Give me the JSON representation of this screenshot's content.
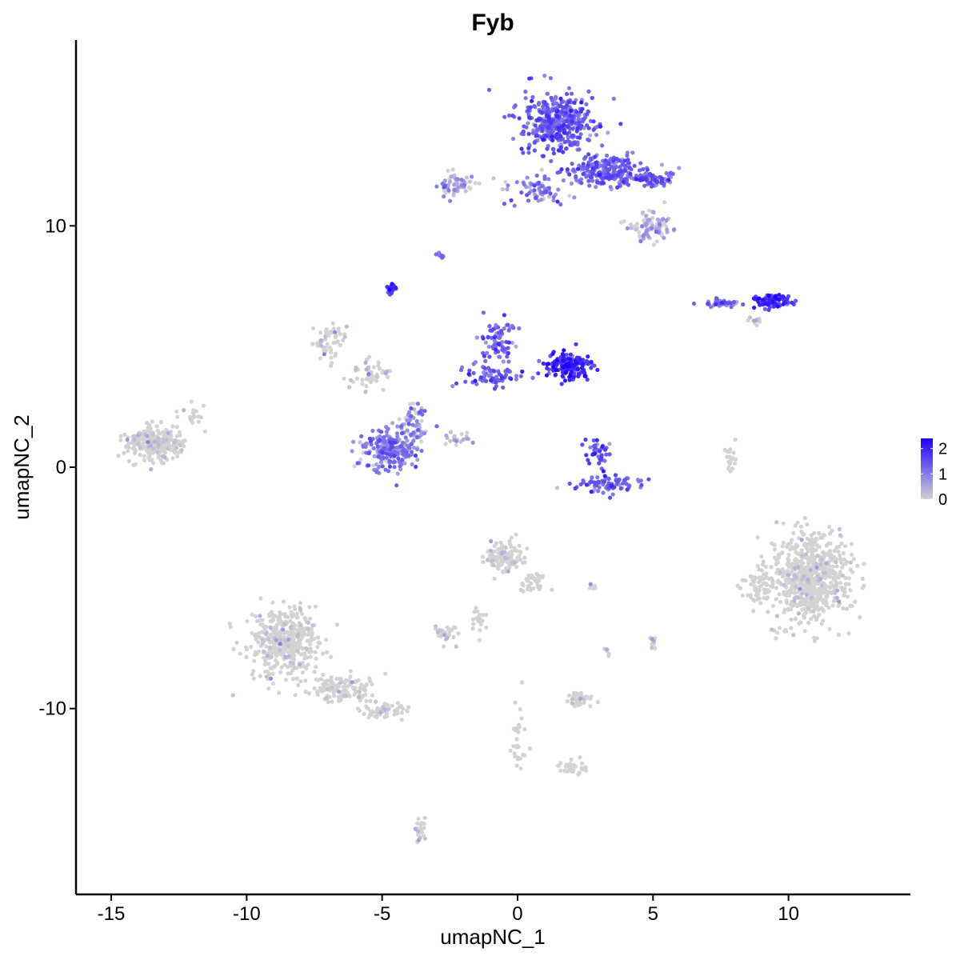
{
  "chart_data": {
    "type": "scatter",
    "title": "Fyb",
    "xlabel": "umapNC_1",
    "ylabel": "umapNC_2",
    "xlim": [
      -16.3,
      14.5
    ],
    "ylim": [
      -17.7,
      17.7
    ],
    "xticks": [
      -15,
      -10,
      -5,
      0,
      5,
      10
    ],
    "yticks": [
      -10,
      0,
      10
    ],
    "xtick_labels": [
      "-15",
      "-10",
      "-5",
      "0",
      "5",
      "10"
    ],
    "ytick_labels": [
      "-10",
      "0",
      "10"
    ],
    "grid": false,
    "legend": {
      "position": "right",
      "type": "colorbar",
      "ticks": [
        0,
        1,
        2
      ],
      "tick_labels": [
        "0",
        "1",
        "2"
      ],
      "range": [
        0,
        2.4
      ],
      "low_color": "#d3d3d3",
      "high_color": "#1c00ff"
    },
    "clusters": [
      {
        "id": "c01",
        "center": [
          1.5,
          14.3
        ],
        "spread": [
          1.2,
          1.1
        ],
        "n": 420,
        "expr": 1.25
      },
      {
        "id": "c02",
        "center": [
          3.3,
          12.3
        ],
        "spread": [
          1.2,
          0.6
        ],
        "n": 230,
        "expr": 1.2
      },
      {
        "id": "c03",
        "center": [
          5.0,
          12.0
        ],
        "spread": [
          0.7,
          0.3
        ],
        "n": 70,
        "expr": 1.3
      },
      {
        "id": "c04",
        "center": [
          4.9,
          9.9
        ],
        "spread": [
          0.8,
          0.5
        ],
        "n": 90,
        "expr": 0.55
      },
      {
        "id": "c05",
        "center": [
          0.7,
          11.5
        ],
        "spread": [
          1.0,
          0.6
        ],
        "n": 70,
        "expr": 0.9
      },
      {
        "id": "c06",
        "center": [
          -2.2,
          11.7
        ],
        "spread": [
          0.6,
          0.4
        ],
        "n": 60,
        "expr": 0.7
      },
      {
        "id": "c07",
        "center": [
          -2.9,
          8.8
        ],
        "spread": [
          0.15,
          0.1
        ],
        "n": 10,
        "expr": 1.1
      },
      {
        "id": "c08",
        "center": [
          -4.7,
          7.4
        ],
        "spread": [
          0.15,
          0.2
        ],
        "n": 18,
        "expr": 1.7
      },
      {
        "id": "c09",
        "center": [
          7.5,
          6.8
        ],
        "spread": [
          0.6,
          0.15
        ],
        "n": 45,
        "expr": 1.1
      },
      {
        "id": "c10",
        "center": [
          9.4,
          6.9
        ],
        "spread": [
          0.6,
          0.25
        ],
        "n": 90,
        "expr": 1.7
      },
      {
        "id": "c11",
        "center": [
          8.8,
          6.0
        ],
        "spread": [
          0.2,
          0.2
        ],
        "n": 10,
        "expr": 0.5
      },
      {
        "id": "c12",
        "center": [
          -0.7,
          5.3
        ],
        "spread": [
          0.5,
          0.7
        ],
        "n": 70,
        "expr": 1.2
      },
      {
        "id": "c13",
        "center": [
          1.9,
          4.2
        ],
        "spread": [
          0.8,
          0.5
        ],
        "n": 160,
        "expr": 1.8
      },
      {
        "id": "c14",
        "center": [
          -1.0,
          3.8
        ],
        "spread": [
          0.9,
          0.5
        ],
        "n": 80,
        "expr": 1.2
      },
      {
        "id": "c15",
        "center": [
          -7.0,
          5.2
        ],
        "spread": [
          0.6,
          0.6
        ],
        "n": 60,
        "expr": 0.15
      },
      {
        "id": "c16",
        "center": [
          -5.3,
          3.8
        ],
        "spread": [
          0.8,
          0.6
        ],
        "n": 50,
        "expr": 0.25
      },
      {
        "id": "c17",
        "center": [
          -4.7,
          0.7
        ],
        "spread": [
          0.9,
          0.8
        ],
        "n": 220,
        "expr": 1.0
      },
      {
        "id": "c18",
        "center": [
          -3.8,
          1.7
        ],
        "spread": [
          0.5,
          0.8
        ],
        "n": 60,
        "expr": 0.8
      },
      {
        "id": "c19",
        "center": [
          -2.2,
          1.2
        ],
        "spread": [
          0.5,
          0.3
        ],
        "n": 20,
        "expr": 0.5
      },
      {
        "id": "c20",
        "center": [
          3.3,
          -0.7
        ],
        "spread": [
          1.0,
          0.3
        ],
        "n": 80,
        "expr": 1.3
      },
      {
        "id": "c21",
        "center": [
          3.0,
          0.6
        ],
        "spread": [
          0.4,
          0.5
        ],
        "n": 40,
        "expr": 1.5
      },
      {
        "id": "c22",
        "center": [
          -13.4,
          1.0
        ],
        "spread": [
          1.0,
          0.6
        ],
        "n": 280,
        "expr": 0.08
      },
      {
        "id": "c23",
        "center": [
          -12.0,
          2.2
        ],
        "spread": [
          0.4,
          0.4
        ],
        "n": 20,
        "expr": 0.05
      },
      {
        "id": "c24",
        "center": [
          7.9,
          0.3
        ],
        "spread": [
          0.2,
          0.7
        ],
        "n": 20,
        "expr": 0.0
      },
      {
        "id": "c25",
        "center": [
          10.8,
          -4.5
        ],
        "spread": [
          1.3,
          1.6
        ],
        "n": 650,
        "expr": 0.04
      },
      {
        "id": "c26",
        "center": [
          8.9,
          -5.0
        ],
        "spread": [
          0.5,
          0.7
        ],
        "n": 60,
        "expr": 0.0
      },
      {
        "id": "c27",
        "center": [
          -0.5,
          -3.7
        ],
        "spread": [
          0.6,
          0.6
        ],
        "n": 130,
        "expr": 0.1
      },
      {
        "id": "c28",
        "center": [
          0.6,
          -4.8
        ],
        "spread": [
          0.5,
          0.4
        ],
        "n": 40,
        "expr": 0.0
      },
      {
        "id": "c29",
        "center": [
          -1.4,
          -6.3
        ],
        "spread": [
          0.3,
          0.6
        ],
        "n": 20,
        "expr": 0.0
      },
      {
        "id": "c30",
        "center": [
          -2.6,
          -6.9
        ],
        "spread": [
          0.4,
          0.3
        ],
        "n": 30,
        "expr": 0.1
      },
      {
        "id": "c31",
        "center": [
          -8.6,
          -7.3
        ],
        "spread": [
          1.2,
          1.4
        ],
        "n": 420,
        "expr": 0.08
      },
      {
        "id": "c32",
        "center": [
          -6.5,
          -9.2
        ],
        "spread": [
          1.1,
          0.5
        ],
        "n": 130,
        "expr": 0.05
      },
      {
        "id": "c33",
        "center": [
          -4.8,
          -10.1
        ],
        "spread": [
          0.8,
          0.3
        ],
        "n": 60,
        "expr": 0.05
      },
      {
        "id": "c34",
        "center": [
          2.3,
          -9.6
        ],
        "spread": [
          0.6,
          0.3
        ],
        "n": 40,
        "expr": 0.05
      },
      {
        "id": "c35",
        "center": [
          0.0,
          -11.2
        ],
        "spread": [
          0.3,
          1.2
        ],
        "n": 30,
        "expr": 0.0
      },
      {
        "id": "c36",
        "center": [
          2.0,
          -12.4
        ],
        "spread": [
          0.5,
          0.3
        ],
        "n": 30,
        "expr": 0.0
      },
      {
        "id": "c37",
        "center": [
          -3.6,
          -15.0
        ],
        "spread": [
          0.2,
          0.5
        ],
        "n": 25,
        "expr": 0.05
      },
      {
        "id": "c38",
        "center": [
          5.0,
          -7.3
        ],
        "spread": [
          0.15,
          0.3
        ],
        "n": 10,
        "expr": 0.2
      },
      {
        "id": "c39",
        "center": [
          3.3,
          -7.6
        ],
        "spread": [
          0.1,
          0.3
        ],
        "n": 6,
        "expr": 0.1
      },
      {
        "id": "c40",
        "center": [
          2.8,
          -5.0
        ],
        "spread": [
          0.2,
          0.1
        ],
        "n": 6,
        "expr": 0.3
      }
    ]
  }
}
